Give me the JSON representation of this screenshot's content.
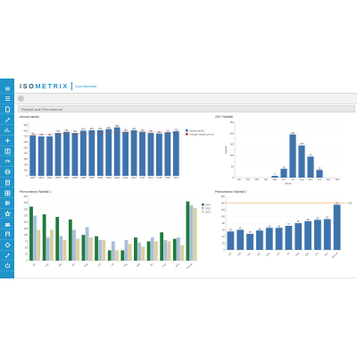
{
  "sidebar": {
    "items": [
      {
        "icon": "menu-icon"
      },
      {
        "icon": "list-icon"
      },
      {
        "icon": "document-icon"
      },
      {
        "icon": "tools-icon"
      },
      {
        "icon": "chart-icon"
      },
      {
        "icon": "settings-icon"
      },
      {
        "icon": "book-icon"
      },
      {
        "icon": "gauge-icon"
      },
      {
        "icon": "globe-icon"
      },
      {
        "icon": "document-list-icon"
      },
      {
        "icon": "table-icon"
      },
      {
        "icon": "data-icon"
      },
      {
        "icon": "star-icon"
      },
      {
        "icon": "people-icon"
      },
      {
        "icon": "building-icon"
      },
      {
        "icon": "gear-icon"
      },
      {
        "icon": "link-icon"
      },
      {
        "icon": "power-icon"
      }
    ],
    "color": "#1f93c8"
  },
  "header": {
    "logo_text_a": "ISO",
    "logo_text_b": "METRIX",
    "logo_subtitle": "Good Business"
  },
  "section": {
    "title": "Rainfall and Phenomenon"
  },
  "colors": {
    "bar_blue": "#3f73ad",
    "bar_green": "#1f7a3c",
    "bar_tan": "#d9d0a0",
    "bar_lightblue": "#a9bdd9",
    "line_red": "#cc4444",
    "line_orange": "#f0a050"
  },
  "panels": {
    "annual": {
      "title": "Annual rainfall"
    },
    "year2017": {
      "title": "2017 Rainfall"
    },
    "phen1": {
      "title": "Phenomenon Rainfall 1"
    },
    "phen2": {
      "title": "Phenomenon Rainfall 2"
    }
  },
  "chart_data": [
    {
      "id": "annual",
      "type": "bar",
      "title": "Annual rainfall",
      "categories": [
        "2000",
        "2001",
        "2002",
        "2003",
        "2004",
        "2005",
        "2006",
        "2007",
        "2008",
        "2009",
        "2010",
        "2011",
        "2012",
        "2013",
        "2014",
        "2015",
        "2016",
        "2017"
      ],
      "values": [
        720,
        700,
        700,
        760,
        780,
        760,
        800,
        810,
        810,
        830,
        860,
        780,
        810,
        780,
        760,
        750,
        770,
        790
      ],
      "data_labels": [
        "720",
        "700",
        "700",
        "760",
        "780",
        "760",
        "800",
        "810",
        "810",
        "830",
        "860",
        "780",
        "810",
        "780",
        "760",
        "750",
        "770",
        "790"
      ],
      "yticks": [
        0,
        100,
        200,
        300,
        400,
        500,
        600,
        700,
        800,
        900
      ],
      "ylim": [
        0,
        950
      ],
      "legend": [
        "Annual rainfall",
        "Average rainfall over ten years"
      ],
      "avg_line": [
        740,
        740,
        740,
        745,
        750,
        752,
        755,
        760,
        765,
        770,
        775,
        775,
        778,
        778,
        775,
        774,
        773,
        772
      ],
      "legend_position": "right"
    },
    {
      "id": "year2017",
      "type": "bar",
      "title": "2017 Rainfall",
      "categories": [
        "Jan",
        "Feb",
        "Mar",
        "Apr",
        "May",
        "Jun",
        "Jul",
        "Aug",
        "Sep",
        "Oct",
        "Nov",
        "Dec"
      ],
      "values": [
        0,
        0,
        0,
        0,
        8,
        40,
        195,
        145,
        95,
        35,
        0,
        0
      ],
      "data_labels": [
        "",
        "",
        "",
        "",
        "8",
        "40",
        "195",
        "145",
        "95",
        "35",
        "",
        ""
      ],
      "yticks": [
        0,
        50,
        100,
        150,
        200,
        250
      ],
      "ylim": [
        0,
        250
      ],
      "ylabel": "Rainfall",
      "xlabel": "Month"
    },
    {
      "id": "phen1",
      "type": "bar",
      "title": "Phenomenon Rainfall 1",
      "categories": [
        "Jan",
        "Feb",
        "Mar",
        "Apr",
        "May",
        "Jun",
        "Jul",
        "Aug",
        "Sep",
        "Oct",
        "Nov",
        "Dec",
        "Annual"
      ],
      "series": [
        {
          "name": "2016",
          "values": [
            210,
            180,
            170,
            160,
            100,
            95,
            40,
            40,
            90,
            75,
            110,
            85,
            230
          ]
        },
        {
          "name": "2015",
          "values": [
            175,
            90,
            95,
            120,
            130,
            80,
            75,
            80,
            70,
            90,
            80,
            90,
            215
          ]
        },
        {
          "name": "2014",
          "values": [
            120,
            120,
            80,
            85,
            90,
            80,
            40,
            65,
            55,
            75,
            75,
            60,
            205
          ]
        }
      ],
      "yticks": [
        0,
        25,
        50,
        75,
        100,
        125,
        150,
        175,
        200,
        225,
        250
      ],
      "ylim": [
        0,
        250
      ],
      "legend_position": "right"
    },
    {
      "id": "phen2",
      "type": "bar",
      "title": "Phenomenon Rainfall 2",
      "categories": [
        "Jan",
        "Feb",
        "Mar",
        "Apr",
        "May",
        "Jun",
        "Jul",
        "Aug",
        "Sep",
        "Oct",
        "Nov",
        "Annual"
      ],
      "values": [
        55,
        60,
        48,
        58,
        66,
        66,
        72,
        80,
        86,
        90,
        92,
        135
      ],
      "data_labels": [
        "55",
        "60",
        "48",
        "58",
        "66",
        "66",
        "72",
        "80",
        "86",
        "90",
        "92",
        "135"
      ],
      "reference_line": 140,
      "reference_label": "140",
      "yticks": [
        0,
        20,
        40,
        60,
        80,
        100,
        120,
        140,
        160
      ],
      "ylim": [
        0,
        160
      ]
    }
  ]
}
